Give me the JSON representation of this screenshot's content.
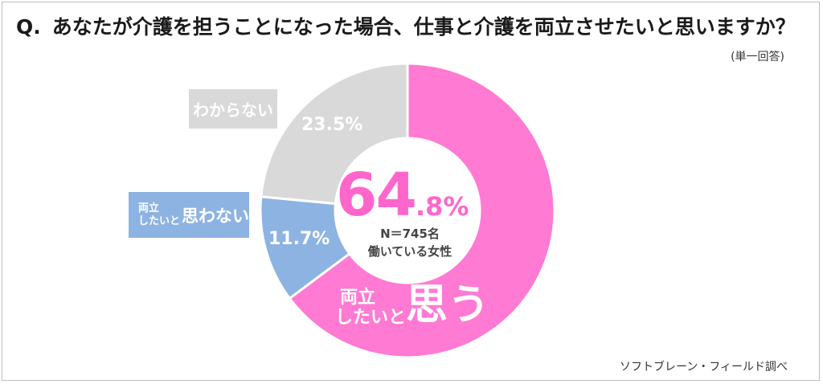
{
  "header": {
    "q_mark": "Q.",
    "question": "あなたが介護を担うことになった場合、仕事と介護を両立させたいと思いますか？",
    "answer_type": "(単一回答)"
  },
  "footer": {
    "source": "ソフトブレーン・フィールド調べ"
  },
  "center": {
    "highlight_int": "64",
    "highlight_dec": ".8%",
    "n_label": "N＝745名",
    "population": "働いている女性"
  },
  "labels": {
    "yes_line1": "両立",
    "yes_line2": "したいと",
    "yes_big": "思う",
    "no_small_line1": "両立",
    "no_small_line2": "したいと",
    "no_big": "思わない",
    "unknown": "わからない"
  },
  "chart_data": {
    "type": "pie",
    "donut": true,
    "title": "あなたが介護を担うことになった場合、仕事と介護を両立させたいと思いますか？",
    "n": 745,
    "slices": [
      {
        "label": "両立したいと思う",
        "value": 64.8,
        "color": "#ff7ad3",
        "display": "64.8%"
      },
      {
        "label": "両立したいと思わない",
        "value": 11.7,
        "color": "#8db3e2",
        "display": "11.7%"
      },
      {
        "label": "わからない",
        "value": 23.5,
        "color": "#d9d9d9",
        "display": "23.5%"
      }
    ]
  }
}
